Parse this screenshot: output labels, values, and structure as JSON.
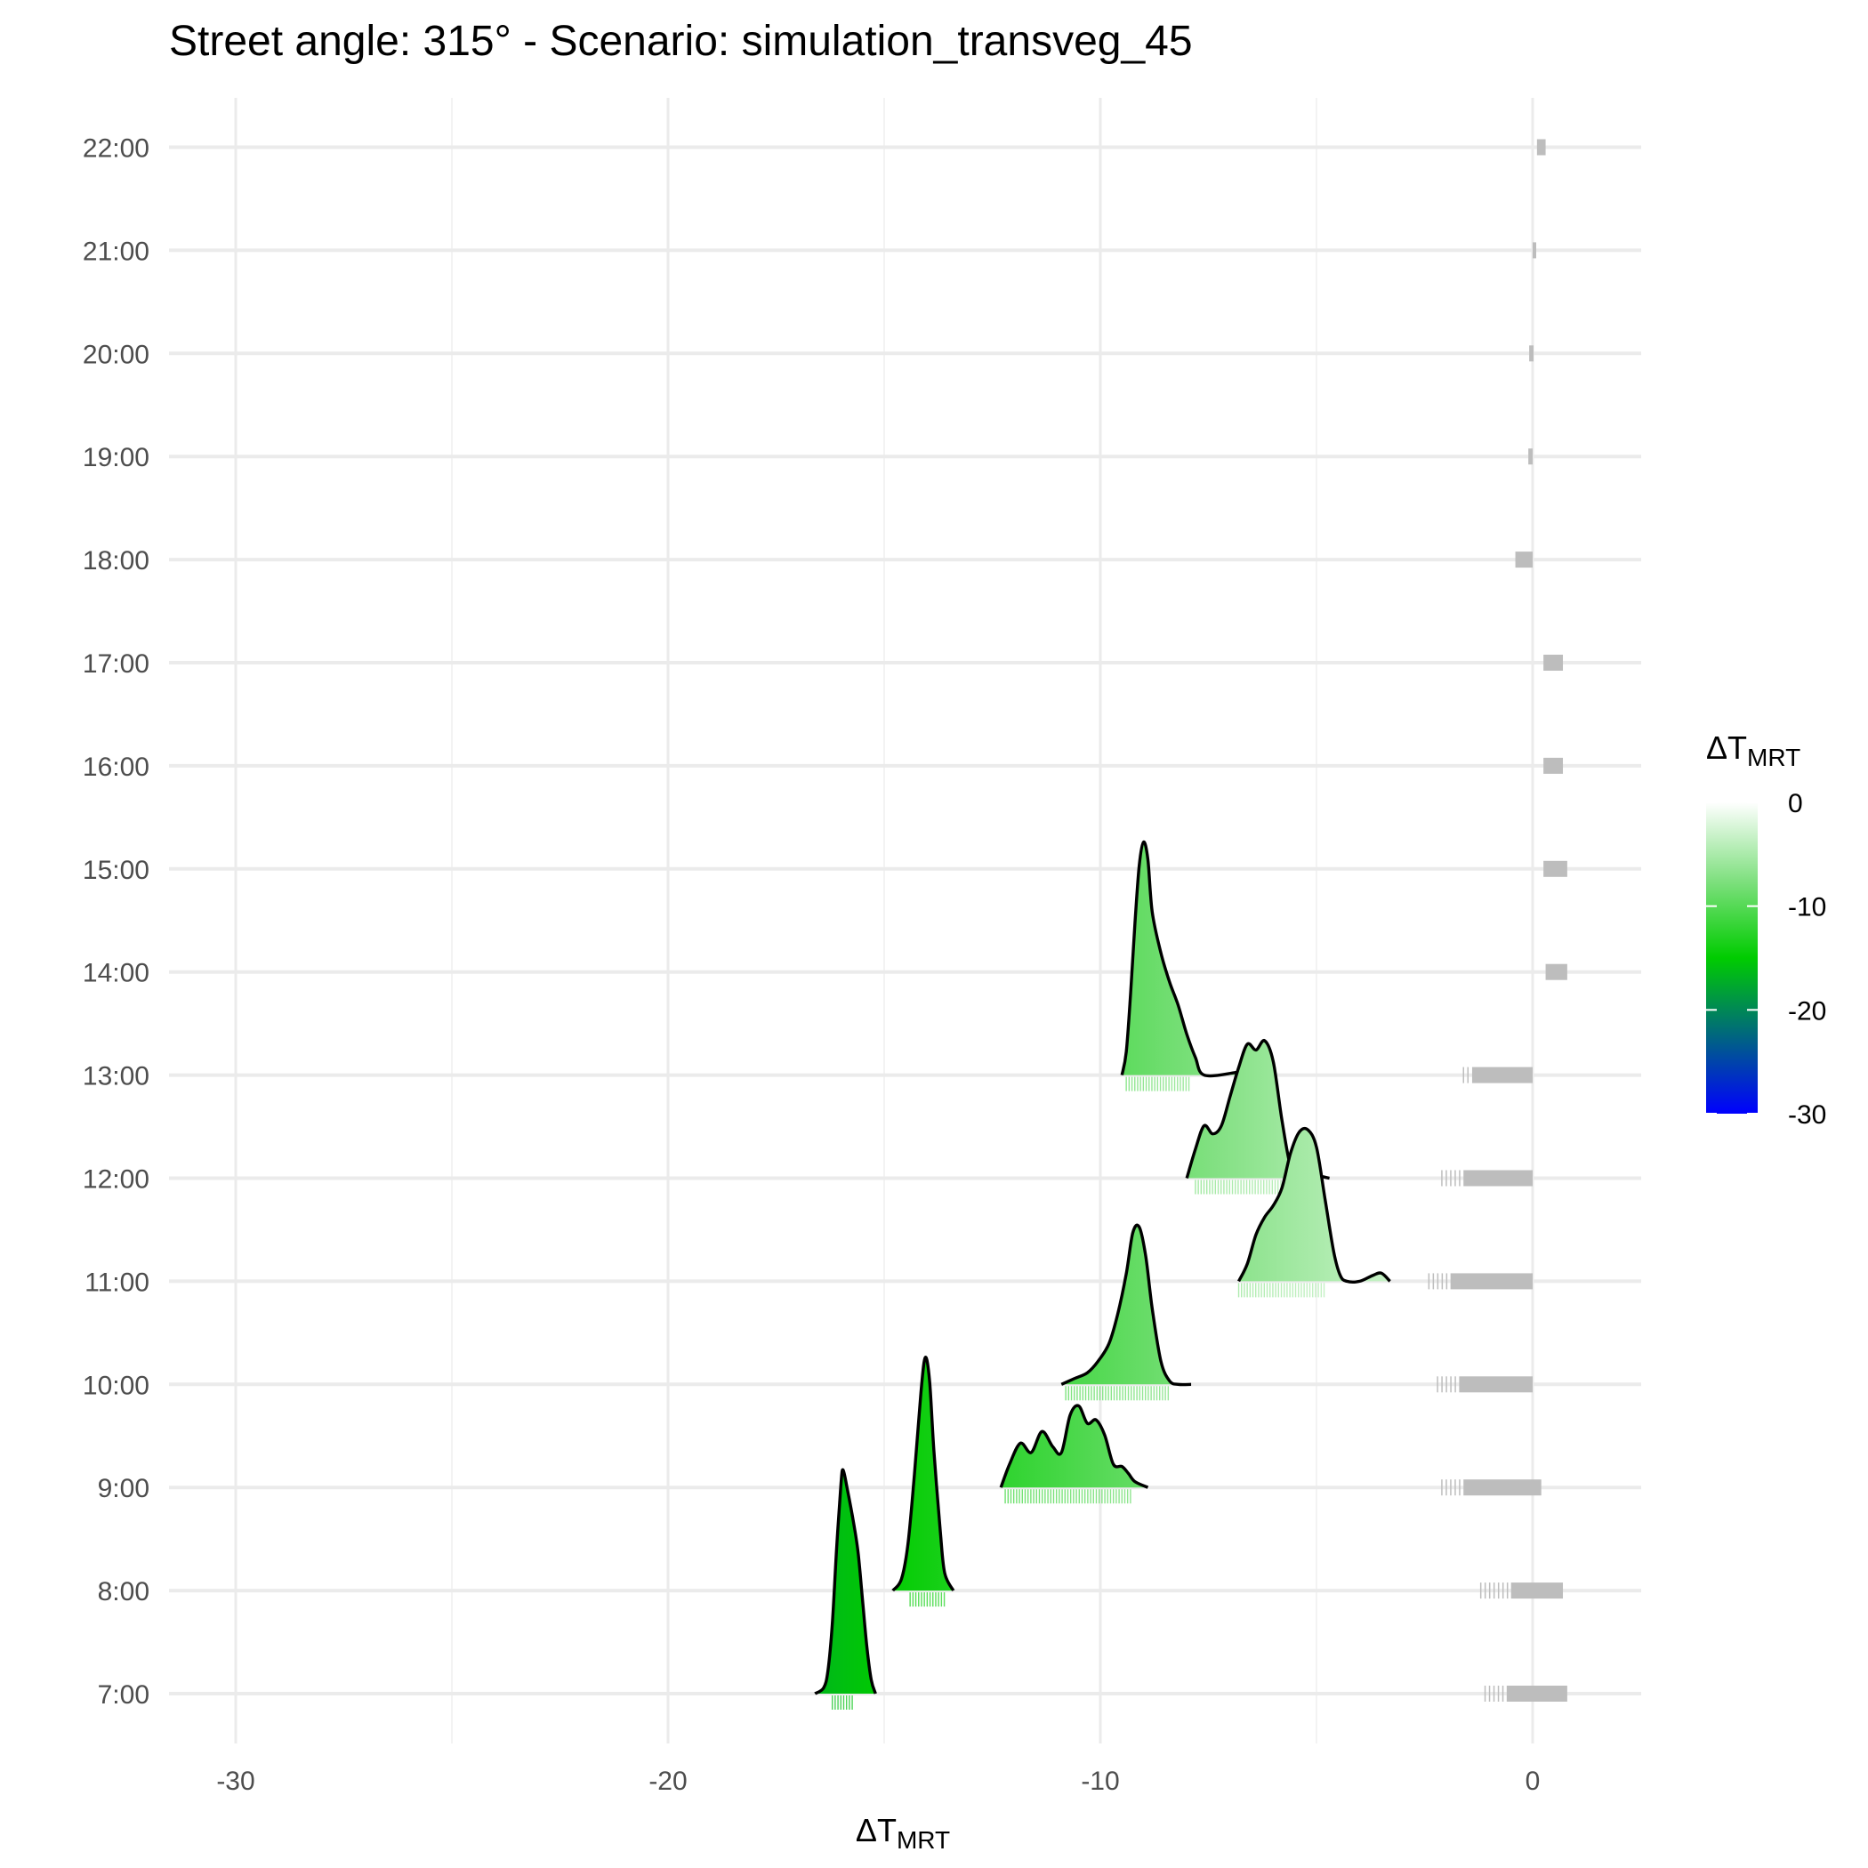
{
  "chart_data": {
    "type": "ridgeline",
    "title": "Street angle: 315° - Scenario: simulation_transveg_45",
    "xlabel": {
      "main": "ΔT",
      "sub": "MRT"
    },
    "xlim": [
      -31.5,
      2.6
    ],
    "xticks": [
      -30,
      -20,
      -10,
      0
    ],
    "xtick_labels": [
      "-30",
      "-20",
      "-10",
      "0"
    ],
    "x_minor_gridlines": [
      -25,
      -15,
      -5
    ],
    "categories": [
      "7:00",
      "8:00",
      "9:00",
      "10:00",
      "11:00",
      "12:00",
      "13:00",
      "14:00",
      "15:00",
      "16:00",
      "17:00",
      "18:00",
      "19:00",
      "20:00",
      "21:00",
      "22:00"
    ],
    "grid": true,
    "legend": {
      "title": {
        "main": "ΔT",
        "sub": "MRT"
      },
      "placement": "right",
      "range": [
        -30,
        0
      ],
      "ticks": [
        0,
        -10,
        -20,
        -30
      ],
      "tick_labels": [
        "0",
        "-10",
        "-20",
        "-30"
      ],
      "stops": [
        {
          "value": -30,
          "color": "#0000ff"
        },
        {
          "value": -15,
          "color": "#00cc00"
        },
        {
          "value": -7.5,
          "color": "#80e080"
        },
        {
          "value": 0,
          "color": "#ffffff"
        }
      ]
    },
    "colors": {
      "outline": "#000000",
      "rug_nonzero": "#bdbdbd",
      "grid": "#ebebeb"
    },
    "series": [
      {
        "name": "7:00",
        "peak_height": 1.92,
        "density": [
          [
            -16.6,
            0
          ],
          [
            -16.4,
            0.05
          ],
          [
            -16.3,
            0.2
          ],
          [
            -16.2,
            0.6
          ],
          [
            -16.1,
            1.25
          ],
          [
            -16.0,
            1.8
          ],
          [
            -15.95,
            1.92
          ],
          [
            -15.85,
            1.75
          ],
          [
            -15.7,
            1.45
          ],
          [
            -15.6,
            1.2
          ],
          [
            -15.5,
            0.8
          ],
          [
            -15.4,
            0.4
          ],
          [
            -15.3,
            0.12
          ],
          [
            -15.2,
            0
          ]
        ],
        "mean": -16,
        "rug": [
          -16.2,
          -15.7
        ]
      },
      {
        "name": "8:00",
        "peak_height": 2.0,
        "density": [
          [
            -14.8,
            0
          ],
          [
            -14.6,
            0.1
          ],
          [
            -14.45,
            0.4
          ],
          [
            -14.3,
            1.0
          ],
          [
            -14.15,
            1.7
          ],
          [
            -14.05,
            2.0
          ],
          [
            -13.95,
            1.8
          ],
          [
            -13.85,
            1.2
          ],
          [
            -13.7,
            0.5
          ],
          [
            -13.6,
            0.15
          ],
          [
            -13.4,
            0
          ]
        ],
        "mean": -14,
        "rug": [
          -14.4,
          -13.6
        ]
      },
      {
        "name": "9:00",
        "peak_height": 0.7,
        "density": [
          [
            -12.3,
            0
          ],
          [
            -12.1,
            0.2
          ],
          [
            -11.85,
            0.38
          ],
          [
            -11.6,
            0.3
          ],
          [
            -11.35,
            0.48
          ],
          [
            -11.1,
            0.35
          ],
          [
            -10.9,
            0.3
          ],
          [
            -10.7,
            0.62
          ],
          [
            -10.5,
            0.7
          ],
          [
            -10.3,
            0.55
          ],
          [
            -10.1,
            0.58
          ],
          [
            -9.9,
            0.45
          ],
          [
            -9.7,
            0.2
          ],
          [
            -9.5,
            0.18
          ],
          [
            -9.35,
            0.12
          ],
          [
            -9.2,
            0.05
          ],
          [
            -8.9,
            0
          ]
        ],
        "mean": -10.5,
        "rug": [
          -12.2,
          -9.3
        ]
      },
      {
        "name": "10:00",
        "peak_height": 1.35,
        "density": [
          [
            -10.9,
            0
          ],
          [
            -10.6,
            0.05
          ],
          [
            -10.3,
            0.1
          ],
          [
            -10.05,
            0.2
          ],
          [
            -9.8,
            0.35
          ],
          [
            -9.6,
            0.6
          ],
          [
            -9.4,
            0.95
          ],
          [
            -9.25,
            1.3
          ],
          [
            -9.1,
            1.35
          ],
          [
            -8.95,
            1.1
          ],
          [
            -8.8,
            0.65
          ],
          [
            -8.6,
            0.2
          ],
          [
            -8.4,
            0.03
          ],
          [
            -8.2,
            0
          ],
          [
            -7.9,
            0
          ]
        ],
        "mean": -9.2,
        "rug": [
          -10.8,
          -8.4
        ]
      },
      {
        "name": "11:00",
        "peak_height": 1.3,
        "density": [
          [
            -6.8,
            0
          ],
          [
            -6.6,
            0.15
          ],
          [
            -6.4,
            0.4
          ],
          [
            -6.2,
            0.55
          ],
          [
            -6.0,
            0.65
          ],
          [
            -5.8,
            0.8
          ],
          [
            -5.6,
            1.1
          ],
          [
            -5.4,
            1.28
          ],
          [
            -5.2,
            1.3
          ],
          [
            -5.0,
            1.15
          ],
          [
            -4.8,
            0.7
          ],
          [
            -4.6,
            0.25
          ],
          [
            -4.45,
            0.05
          ],
          [
            -4.3,
            0
          ],
          [
            -4.0,
            0
          ],
          [
            -3.7,
            0.05
          ],
          [
            -3.5,
            0.07
          ],
          [
            -3.3,
            0
          ]
        ],
        "mean": -5.4,
        "rug": [
          -6.8,
          -4.8
        ]
      },
      {
        "name": "12:00",
        "peak_height": 1.2,
        "density": [
          [
            -8.0,
            0
          ],
          [
            -7.8,
            0.25
          ],
          [
            -7.6,
            0.45
          ],
          [
            -7.4,
            0.38
          ],
          [
            -7.2,
            0.45
          ],
          [
            -7.0,
            0.7
          ],
          [
            -6.8,
            0.95
          ],
          [
            -6.6,
            1.15
          ],
          [
            -6.4,
            1.1
          ],
          [
            -6.2,
            1.18
          ],
          [
            -6.0,
            1.0
          ],
          [
            -5.8,
            0.5
          ],
          [
            -5.6,
            0.1
          ],
          [
            -5.4,
            0.02
          ],
          [
            -5.0,
            0.02
          ],
          [
            -4.7,
            0
          ]
        ],
        "mean": -6.6,
        "rug": [
          -7.8,
          -5.6
        ]
      },
      {
        "name": "13:00",
        "peak_height": 2.0,
        "density": [
          [
            -9.5,
            0
          ],
          [
            -9.4,
            0.2
          ],
          [
            -9.3,
            0.7
          ],
          [
            -9.2,
            1.3
          ],
          [
            -9.1,
            1.8
          ],
          [
            -9.0,
            2.0
          ],
          [
            -8.9,
            1.85
          ],
          [
            -8.8,
            1.4
          ],
          [
            -8.6,
            1.05
          ],
          [
            -8.4,
            0.8
          ],
          [
            -8.2,
            0.6
          ],
          [
            -8.0,
            0.35
          ],
          [
            -7.8,
            0.15
          ],
          [
            -7.6,
            0
          ],
          [
            -6.9,
            0.02
          ],
          [
            -6.7,
            0.04
          ],
          [
            -6.5,
            0.02
          ]
        ],
        "mean": -9.0,
        "rug": [
          -9.4,
          -7.9
        ]
      }
    ],
    "zero_value_rugs": [
      {
        "name": "7:00",
        "range": [
          -1.1,
          0.8
        ],
        "dense_from": -0.6
      },
      {
        "name": "8:00",
        "range": [
          -1.2,
          0.7
        ],
        "dense_from": -0.5
      },
      {
        "name": "9:00",
        "range": [
          -2.1,
          0.2
        ],
        "dense_from": -1.6
      },
      {
        "name": "10:00",
        "range": [
          -2.2,
          0
        ],
        "dense_from": -1.7
      },
      {
        "name": "11:00",
        "range": [
          -2.4,
          0
        ],
        "dense_from": -1.9
      },
      {
        "name": "12:00",
        "range": [
          -2.1,
          0
        ],
        "dense_from": -1.6
      },
      {
        "name": "13:00",
        "range": [
          -1.6,
          0
        ],
        "dense_from": -1.4
      },
      {
        "name": "14:00",
        "range": [
          0.3,
          0.8
        ],
        "dense_from": 0.3
      },
      {
        "name": "15:00",
        "range": [
          0.25,
          0.8
        ],
        "dense_from": 0.25
      },
      {
        "name": "16:00",
        "range": [
          0.25,
          0.7
        ],
        "dense_from": 0.25
      },
      {
        "name": "17:00",
        "range": [
          0.25,
          0.7
        ],
        "dense_from": 0.25
      },
      {
        "name": "18:00",
        "range": [
          -0.4,
          0
        ],
        "dense_from": -0.4
      },
      {
        "name": "19:00",
        "range": [
          -0.1,
          0
        ],
        "dense_from": -0.1
      },
      {
        "name": "20:00",
        "range": [
          -0.08,
          0.02
        ],
        "dense_from": -0.08
      },
      {
        "name": "21:00",
        "range": [
          0,
          0.05
        ],
        "dense_from": 0
      },
      {
        "name": "22:00",
        "range": [
          0.1,
          0.3
        ],
        "dense_from": 0.1
      }
    ]
  }
}
